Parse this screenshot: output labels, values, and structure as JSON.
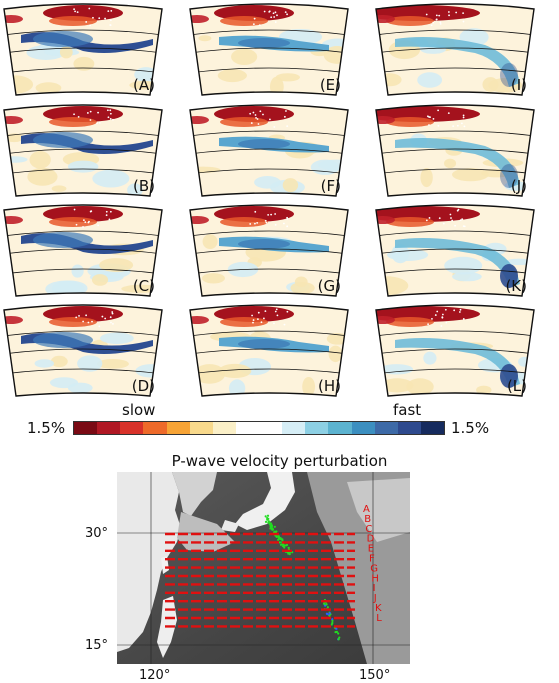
{
  "panels": [
    {
      "label": "(A)"
    },
    {
      "label": "(B)"
    },
    {
      "label": "(C)"
    },
    {
      "label": "(D)"
    },
    {
      "label": "(E)"
    },
    {
      "label": "(F)"
    },
    {
      "label": "(G)"
    },
    {
      "label": "(H)"
    },
    {
      "label": "(I)"
    },
    {
      "label": "(J)"
    },
    {
      "label": "(K)"
    },
    {
      "label": "(L)"
    }
  ],
  "colorbar": {
    "slow_label": "slow",
    "fast_label": "fast",
    "left_value": "1.5%",
    "right_value": "1.5%",
    "colors": [
      "#7a0a14",
      "#b01824",
      "#d8322a",
      "#ee6a2a",
      "#f7a436",
      "#f8d98c",
      "#fbf0c8",
      "#ffffff",
      "#ffffff",
      "#d6eef6",
      "#8dd0e4",
      "#5cb3d0",
      "#3c8fc0",
      "#3d6aa7",
      "#2e4a8e",
      "#162b5e"
    ]
  },
  "map": {
    "title": "P-wave velocity perturbation",
    "lat_ticks": [
      "30°",
      "15°"
    ],
    "lon_ticks": [
      "120°",
      "150°"
    ],
    "profile_letters": [
      "A",
      "B",
      "C",
      "D",
      "E",
      "F",
      "G",
      "H",
      "I",
      "J",
      "K",
      "L"
    ],
    "colors": {
      "profile": "#e01010",
      "seismicity": "#22dd22"
    }
  }
}
